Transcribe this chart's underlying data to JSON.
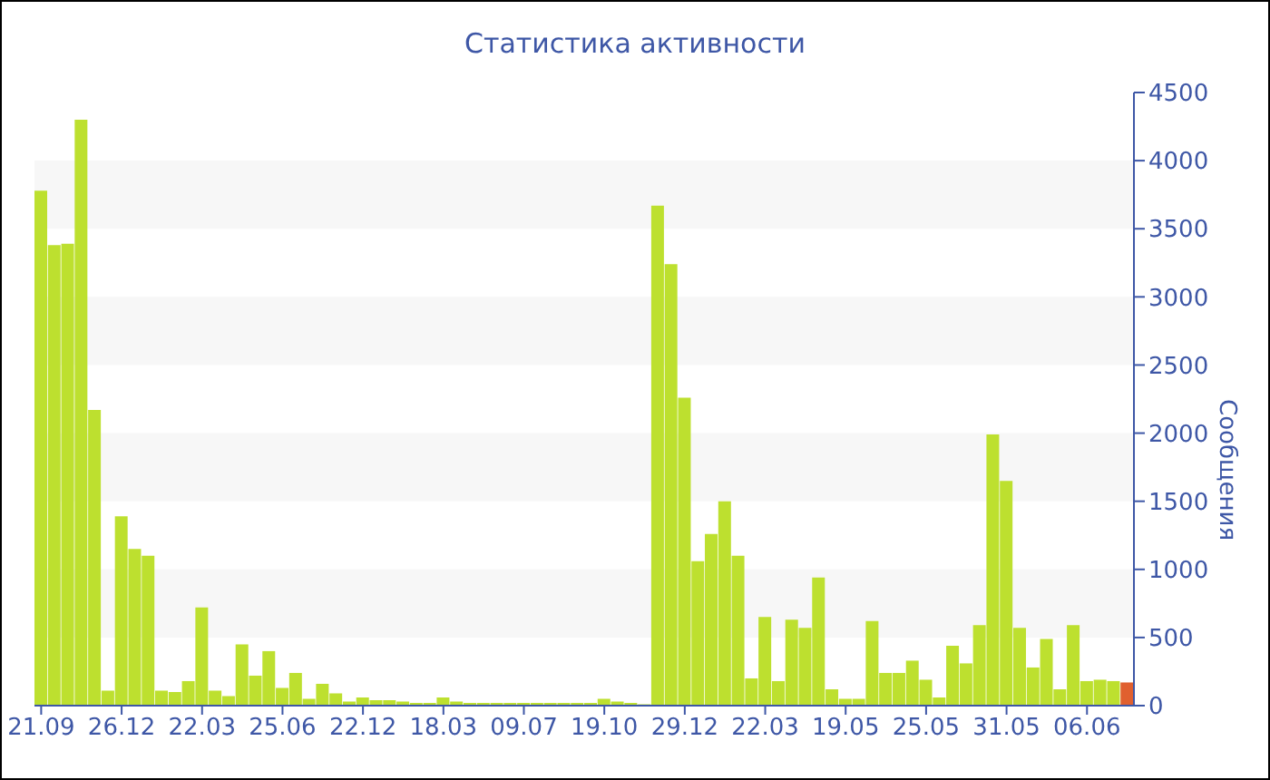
{
  "chart_data": {
    "type": "bar",
    "title": "Статистика активности",
    "ylabel": "Сообщения",
    "categories": [
      "21.09",
      null,
      null,
      null,
      null,
      null,
      "26.12",
      null,
      null,
      null,
      null,
      null,
      "22.03",
      null,
      null,
      null,
      null,
      null,
      "25.06",
      null,
      null,
      null,
      null,
      null,
      "22.12",
      null,
      null,
      null,
      null,
      null,
      "18.03",
      null,
      null,
      null,
      null,
      null,
      "09.07",
      null,
      null,
      null,
      null,
      null,
      "19.10",
      null,
      null,
      null,
      null,
      null,
      "29.12",
      null,
      null,
      null,
      null,
      null,
      "22.03",
      null,
      null,
      null,
      null,
      null,
      "19.05",
      null,
      null,
      null,
      null,
      null,
      "25.05",
      null,
      null,
      null,
      null,
      null,
      "31.05",
      null,
      null,
      null,
      null,
      null,
      "06.06",
      null,
      null,
      null
    ],
    "values": [
      3780,
      3380,
      3390,
      4300,
      2170,
      110,
      1390,
      1150,
      1100,
      110,
      100,
      180,
      720,
      110,
      70,
      450,
      220,
      400,
      130,
      240,
      50,
      160,
      90,
      30,
      60,
      40,
      40,
      30,
      20,
      20,
      60,
      30,
      20,
      20,
      20,
      20,
      20,
      20,
      20,
      20,
      20,
      20,
      50,
      30,
      20,
      10,
      3670,
      3240,
      2260,
      1060,
      1260,
      1500,
      1100,
      200,
      650,
      180,
      630,
      570,
      940,
      120,
      50,
      50,
      620,
      240,
      240,
      330,
      190,
      60,
      440,
      310,
      590,
      1990,
      1650,
      570,
      280,
      490,
      120,
      590,
      180,
      190,
      180,
      170
    ],
    "colors": [
      "#bde02f",
      "#bde02f",
      "#bde02f",
      "#bde02f",
      "#bde02f",
      "#bde02f",
      "#bde02f",
      "#bde02f",
      "#bde02f",
      "#bde02f",
      "#bde02f",
      "#bde02f",
      "#bde02f",
      "#bde02f",
      "#bde02f",
      "#bde02f",
      "#bde02f",
      "#bde02f",
      "#bde02f",
      "#bde02f",
      "#bde02f",
      "#bde02f",
      "#bde02f",
      "#bde02f",
      "#bde02f",
      "#bde02f",
      "#bde02f",
      "#bde02f",
      "#bde02f",
      "#bde02f",
      "#bde02f",
      "#bde02f",
      "#bde02f",
      "#bde02f",
      "#bde02f",
      "#bde02f",
      "#bde02f",
      "#bde02f",
      "#bde02f",
      "#bde02f",
      "#bde02f",
      "#bde02f",
      "#bde02f",
      "#bde02f",
      "#bde02f",
      "#bde02f",
      "#bde02f",
      "#bde02f",
      "#bde02f",
      "#bde02f",
      "#bde02f",
      "#bde02f",
      "#bde02f",
      "#bde02f",
      "#bde02f",
      "#bde02f",
      "#bde02f",
      "#bde02f",
      "#bde02f",
      "#bde02f",
      "#bde02f",
      "#bde02f",
      "#bde02f",
      "#bde02f",
      "#bde02f",
      "#bde02f",
      "#bde02f",
      "#bde02f",
      "#bde02f",
      "#bde02f",
      "#bde02f",
      "#bde02f",
      "#bde02f",
      "#bde02f",
      "#bde02f",
      "#bde02f",
      "#bde02f",
      "#bde02f",
      "#bde02f",
      "#bde02f",
      "#bde02f",
      "#e0602f"
    ],
    "ylim": [
      0,
      4500
    ],
    "yticks": [
      0,
      500,
      1000,
      1500,
      2000,
      2500,
      3000,
      3500,
      4000,
      4500
    ],
    "bands": [
      {
        "axis": "y",
        "from": 500,
        "to": 1000,
        "color": "#f7f7f7"
      },
      {
        "axis": "y",
        "from": 1500,
        "to": 2000,
        "color": "#f7f7f7"
      },
      {
        "axis": "y",
        "from": 2500,
        "to": 3000,
        "color": "#f7f7f7"
      },
      {
        "axis": "y",
        "from": 3500,
        "to": 4000,
        "color": "#f7f7f7"
      }
    ],
    "legend": false
  }
}
